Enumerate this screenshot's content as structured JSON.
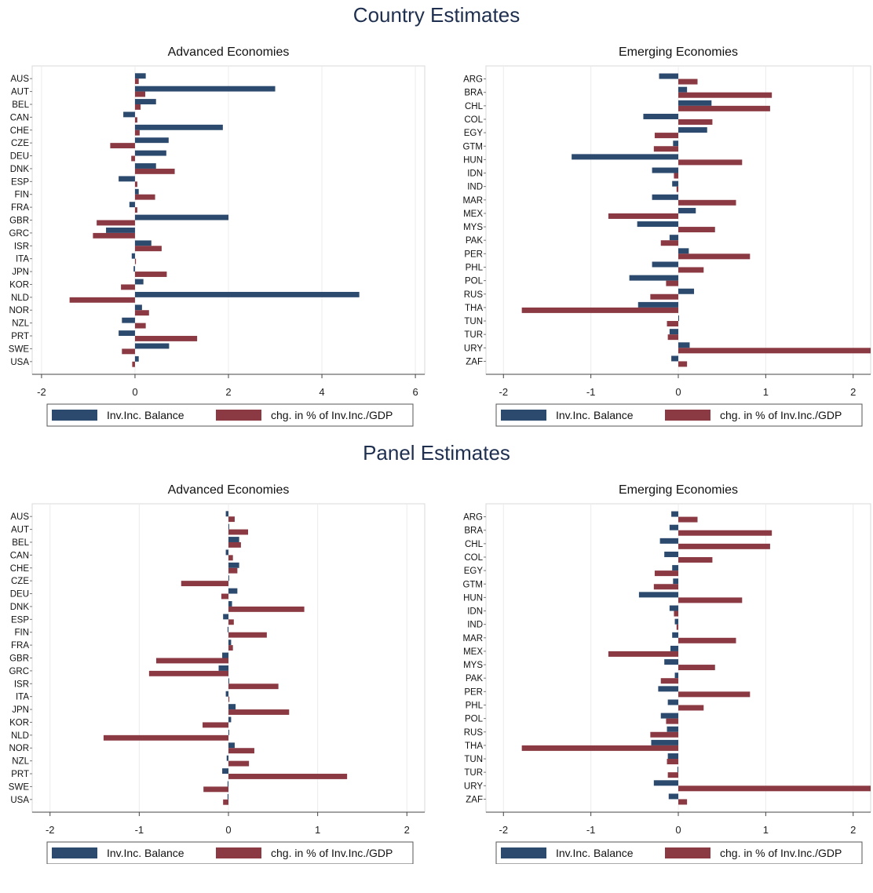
{
  "sections": {
    "country": "Country Estimates",
    "panel": "Panel Estimates"
  },
  "legend": {
    "s1": "Inv.Inc. Balance",
    "s2": "chg. in % of Inv.Inc./GDP"
  },
  "colors": {
    "s1": "#2c4a6e",
    "s2": "#8b3a43"
  },
  "chart_data": [
    {
      "type": "bar",
      "orientation": "horizontal",
      "title": "Advanced Economies",
      "xlim": [
        -2.2,
        6.2
      ],
      "xticks": [
        -2,
        0,
        2,
        4,
        6
      ],
      "categories": [
        "AUS",
        "AUT",
        "BEL",
        "CAN",
        "CHE",
        "CZE",
        "DEU",
        "DNK",
        "ESP",
        "FIN",
        "FRA",
        "GBR",
        "GRC",
        "ISR",
        "ITA",
        "JPN",
        "KOR",
        "NLD",
        "NOR",
        "NZL",
        "PRT",
        "SWE",
        "USA"
      ],
      "series": [
        {
          "name": "Inv.Inc. Balance",
          "values": [
            0.23,
            3.0,
            0.45,
            -0.25,
            1.88,
            0.72,
            0.67,
            0.45,
            -0.35,
            0.08,
            -0.12,
            2.0,
            -0.62,
            0.35,
            -0.07,
            -0.03,
            0.18,
            4.8,
            0.15,
            -0.28,
            -0.35,
            0.73,
            0.08
          ]
        },
        {
          "name": "chg. in % of Inv.Inc./GDP",
          "values": [
            0.08,
            0.22,
            0.12,
            0.05,
            0.1,
            -0.53,
            -0.08,
            0.85,
            0.05,
            0.43,
            0.05,
            -0.82,
            -0.9,
            0.57,
            0.02,
            0.68,
            -0.3,
            -1.4,
            0.3,
            0.23,
            1.33,
            -0.28,
            -0.06
          ]
        }
      ]
    },
    {
      "type": "bar",
      "orientation": "horizontal",
      "title": "Emerging Economies",
      "xlim": [
        -2.2,
        2.2
      ],
      "xticks": [
        -2,
        -1,
        0,
        1,
        2
      ],
      "categories": [
        "ARG",
        "BRA",
        "CHL",
        "COL",
        "EGY",
        "GTM",
        "HUN",
        "IDN",
        "IND",
        "MAR",
        "MEX",
        "MYS",
        "PAK",
        "PER",
        "PHL",
        "POL",
        "RUS",
        "THA",
        "TUN",
        "TUR",
        "URY",
        "ZAF"
      ],
      "series": [
        {
          "name": "Inv.Inc. Balance",
          "values": [
            -0.22,
            0.1,
            0.38,
            -0.4,
            0.33,
            -0.06,
            -1.22,
            -0.3,
            -0.07,
            -0.3,
            0.2,
            -0.47,
            -0.1,
            0.12,
            -0.3,
            -0.56,
            0.18,
            -0.46,
            0.0,
            -0.1,
            0.13,
            -0.08
          ]
        },
        {
          "name": "chg. in % of Inv.Inc./GDP",
          "values": [
            0.22,
            1.07,
            1.05,
            0.39,
            -0.27,
            -0.28,
            0.73,
            -0.05,
            -0.02,
            0.66,
            -0.8,
            0.42,
            -0.2,
            0.82,
            0.29,
            -0.14,
            -0.32,
            -1.79,
            -0.13,
            -0.12,
            2.2,
            0.1
          ]
        }
      ]
    },
    {
      "type": "bar",
      "orientation": "horizontal",
      "title": "Advanced Economies",
      "xlim": [
        -2.2,
        2.2
      ],
      "xticks": [
        -2,
        -1,
        0,
        1,
        2
      ],
      "categories": [
        "AUS",
        "AUT",
        "BEL",
        "CAN",
        "CHE",
        "CZE",
        "DEU",
        "DNK",
        "ESP",
        "FIN",
        "FRA",
        "GBR",
        "GRC",
        "ISR",
        "ITA",
        "JPN",
        "KOR",
        "NLD",
        "NOR",
        "NZL",
        "PRT",
        "SWE",
        "USA"
      ],
      "series": [
        {
          "name": "Inv.Inc. Balance",
          "values": [
            -0.03,
            0.0,
            0.12,
            -0.03,
            0.12,
            0.0,
            0.1,
            0.04,
            -0.06,
            -0.01,
            0.03,
            -0.07,
            -0.11,
            0.0,
            -0.03,
            0.08,
            0.03,
            0.0,
            0.07,
            -0.02,
            -0.07,
            -0.01,
            -0.01
          ]
        },
        {
          "name": "chg. in % of Inv.Inc./GDP",
          "values": [
            0.07,
            0.22,
            0.14,
            0.05,
            0.1,
            -0.53,
            -0.08,
            0.85,
            0.06,
            0.43,
            0.05,
            -0.81,
            -0.89,
            0.56,
            0.01,
            0.68,
            -0.29,
            -1.4,
            0.29,
            0.23,
            1.33,
            -0.28,
            -0.06
          ]
        }
      ]
    },
    {
      "type": "bar",
      "orientation": "horizontal",
      "title": "Emerging Economies",
      "xlim": [
        -2.2,
        2.2
      ],
      "xticks": [
        -2,
        -1,
        0,
        1,
        2
      ],
      "categories": [
        "ARG",
        "BRA",
        "CHL",
        "COL",
        "EGY",
        "GTM",
        "HUN",
        "IDN",
        "IND",
        "MAR",
        "MEX",
        "MYS",
        "PAK",
        "PER",
        "PHL",
        "POL",
        "RUS",
        "THA",
        "TUN",
        "TUR",
        "URY",
        "ZAF"
      ],
      "series": [
        {
          "name": "Inv.Inc. Balance",
          "values": [
            -0.08,
            -0.1,
            -0.21,
            -0.16,
            -0.07,
            -0.06,
            -0.45,
            -0.1,
            -0.04,
            -0.07,
            -0.09,
            -0.16,
            -0.04,
            -0.23,
            -0.12,
            -0.2,
            -0.13,
            -0.31,
            -0.12,
            -0.01,
            -0.28,
            -0.11
          ]
        },
        {
          "name": "chg. in % of Inv.Inc./GDP",
          "values": [
            0.22,
            1.07,
            1.05,
            0.39,
            -0.27,
            -0.28,
            0.73,
            -0.05,
            -0.02,
            0.66,
            -0.8,
            0.42,
            -0.2,
            0.82,
            0.29,
            -0.14,
            -0.32,
            -1.79,
            -0.13,
            -0.12,
            2.2,
            0.1
          ]
        }
      ]
    }
  ]
}
